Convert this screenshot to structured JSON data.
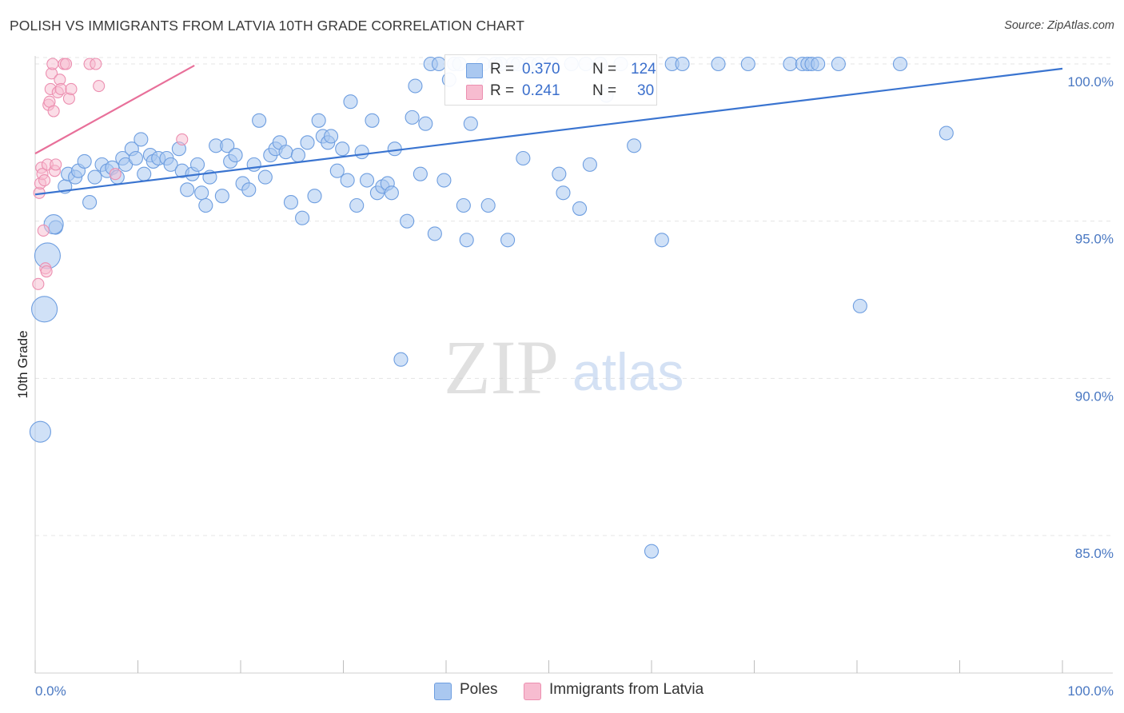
{
  "header": {
    "title": "POLISH VS IMMIGRANTS FROM LATVIA 10TH GRADE CORRELATION CHART",
    "source": "Source: ZipAtlas.com"
  },
  "watermark": {
    "zip": "ZIP",
    "atlas": "atlas"
  },
  "colors": {
    "poles_fill": "#aac8f0",
    "poles_stroke": "#6e9ee0",
    "poles_line": "#3a74d0",
    "latvia_fill": "#f7bcd0",
    "latvia_stroke": "#ec8fb0",
    "latvia_line": "#e8709a",
    "tick_text": "#4a78c2",
    "grid": "#e4e4e4"
  },
  "legend_top": {
    "rows": [
      {
        "r_label": "R =",
        "r_value": "0.370",
        "n_label": "N =",
        "n_value": "124"
      },
      {
        "r_label": "R =",
        "r_value": "0.241",
        "n_label": "N =",
        "n_value": "30"
      }
    ]
  },
  "legend_bottom": {
    "items": [
      "Poles",
      "Immigrants from Latvia"
    ]
  },
  "chart_data": {
    "type": "scatter",
    "title": "POLISH VS IMMIGRANTS FROM LATVIA 10TH GRADE CORRELATION CHART",
    "xlabel": "",
    "ylabel": "10th Grade",
    "xlim": [
      0,
      105
    ],
    "ylim": [
      80.5,
      100.6
    ],
    "x_tick_labels": [
      "0.0%",
      "100.0%"
    ],
    "y_ticks": [
      {
        "value": 85.0,
        "label": "85.0%"
      },
      {
        "value": 90.0,
        "label": "90.0%"
      },
      {
        "value": 95.0,
        "label": "95.0%"
      },
      {
        "value": 100.0,
        "label": "100.0%"
      }
    ],
    "grid": "horizontal dashed",
    "legend": "bottom-center",
    "series": [
      {
        "name": "Poles",
        "r": 0.37,
        "n": 124,
        "trend": {
          "x": [
            0.0,
            100.0
          ],
          "y": [
            95.85,
            99.85
          ]
        },
        "points": [
          [
            0.5,
            88.3
          ],
          [
            0.9,
            92.2
          ],
          [
            1.2,
            93.9
          ],
          [
            2.0,
            94.8
          ],
          [
            1.8,
            94.9
          ],
          [
            2.9,
            96.1
          ],
          [
            3.2,
            96.5
          ],
          [
            3.9,
            96.4
          ],
          [
            4.2,
            96.6
          ],
          [
            4.8,
            96.9
          ],
          [
            5.3,
            95.6
          ],
          [
            5.8,
            96.4
          ],
          [
            6.5,
            96.8
          ],
          [
            7.0,
            96.6
          ],
          [
            7.5,
            96.7
          ],
          [
            8.0,
            96.4
          ],
          [
            8.5,
            97.0
          ],
          [
            8.8,
            96.8
          ],
          [
            9.4,
            97.3
          ],
          [
            9.8,
            97.0
          ],
          [
            10.3,
            97.6
          ],
          [
            10.6,
            96.5
          ],
          [
            11.2,
            97.1
          ],
          [
            11.5,
            96.9
          ],
          [
            12.0,
            97.0
          ],
          [
            12.8,
            97.0
          ],
          [
            13.2,
            96.8
          ],
          [
            14.0,
            97.3
          ],
          [
            14.3,
            96.6
          ],
          [
            14.8,
            96.0
          ],
          [
            15.3,
            96.5
          ],
          [
            15.8,
            96.8
          ],
          [
            16.2,
            95.9
          ],
          [
            16.6,
            95.5
          ],
          [
            17.0,
            96.4
          ],
          [
            17.6,
            97.4
          ],
          [
            18.2,
            95.8
          ],
          [
            18.7,
            97.4
          ],
          [
            19.0,
            96.9
          ],
          [
            19.5,
            97.1
          ],
          [
            20.2,
            96.2
          ],
          [
            20.8,
            96.0
          ],
          [
            21.3,
            96.8
          ],
          [
            21.8,
            98.2
          ],
          [
            22.4,
            96.4
          ],
          [
            22.9,
            97.1
          ],
          [
            23.4,
            97.3
          ],
          [
            23.8,
            97.5
          ],
          [
            24.4,
            97.2
          ],
          [
            24.9,
            95.6
          ],
          [
            25.6,
            97.1
          ],
          [
            26.0,
            95.1
          ],
          [
            26.5,
            97.5
          ],
          [
            27.2,
            95.8
          ],
          [
            27.6,
            98.2
          ],
          [
            28.0,
            97.7
          ],
          [
            28.5,
            97.5
          ],
          [
            28.8,
            97.7
          ],
          [
            29.4,
            96.6
          ],
          [
            29.9,
            97.3
          ],
          [
            30.4,
            96.3
          ],
          [
            30.7,
            98.8
          ],
          [
            31.3,
            95.5
          ],
          [
            31.8,
            97.2
          ],
          [
            32.3,
            96.3
          ],
          [
            32.8,
            98.2
          ],
          [
            33.3,
            95.9
          ],
          [
            33.8,
            96.1
          ],
          [
            34.3,
            96.2
          ],
          [
            34.7,
            95.9
          ],
          [
            35.0,
            97.3
          ],
          [
            35.6,
            90.6
          ],
          [
            36.2,
            95.0
          ],
          [
            36.7,
            98.3
          ],
          [
            37.0,
            99.3
          ],
          [
            37.5,
            96.5
          ],
          [
            38.0,
            98.1
          ],
          [
            38.5,
            100.0
          ],
          [
            38.9,
            94.6
          ],
          [
            39.3,
            100.0
          ],
          [
            39.8,
            96.3
          ],
          [
            40.3,
            99.5
          ],
          [
            40.8,
            100.0
          ],
          [
            41.3,
            100.0
          ],
          [
            41.7,
            95.5
          ],
          [
            42.0,
            94.4
          ],
          [
            42.4,
            98.1
          ],
          [
            43.0,
            99.5
          ],
          [
            43.6,
            100.0
          ],
          [
            44.1,
            95.5
          ],
          [
            44.8,
            100.0
          ],
          [
            45.3,
            100.0
          ],
          [
            46.0,
            94.4
          ],
          [
            46.5,
            100.0
          ],
          [
            47.0,
            100.0
          ],
          [
            47.5,
            97.0
          ],
          [
            48.2,
            100.0
          ],
          [
            49.0,
            100.0
          ],
          [
            50.3,
            100.0
          ],
          [
            51.0,
            96.5
          ],
          [
            51.4,
            95.9
          ],
          [
            52.2,
            100.0
          ],
          [
            53.0,
            95.4
          ],
          [
            53.6,
            100.0
          ],
          [
            54.0,
            96.8
          ],
          [
            55.0,
            100.0
          ],
          [
            55.6,
            99.0
          ],
          [
            57.0,
            100.0
          ],
          [
            58.3,
            97.4
          ],
          [
            60.0,
            84.5
          ],
          [
            61.0,
            94.4
          ],
          [
            62.0,
            100.0
          ],
          [
            63.0,
            100.0
          ],
          [
            66.5,
            100.0
          ],
          [
            69.4,
            100.0
          ],
          [
            73.5,
            100.0
          ],
          [
            74.7,
            100.0
          ],
          [
            75.2,
            100.0
          ],
          [
            75.6,
            100.0
          ],
          [
            76.2,
            100.0
          ],
          [
            78.2,
            100.0
          ],
          [
            80.3,
            92.3
          ],
          [
            84.2,
            100.0
          ],
          [
            88.7,
            97.8
          ]
        ]
      },
      {
        "name": "Immigrants from Latvia",
        "r": 0.241,
        "n": 30,
        "trend": {
          "x": [
            0.0,
            15.5
          ],
          "y": [
            97.15,
            99.95
          ]
        },
        "points": [
          [
            0.3,
            93.0
          ],
          [
            0.4,
            95.9
          ],
          [
            0.5,
            96.2
          ],
          [
            0.6,
            96.7
          ],
          [
            0.7,
            96.5
          ],
          [
            0.8,
            94.7
          ],
          [
            0.9,
            96.3
          ],
          [
            1.0,
            93.5
          ],
          [
            1.1,
            93.4
          ],
          [
            1.2,
            96.8
          ],
          [
            1.3,
            98.7
          ],
          [
            1.4,
            98.8
          ],
          [
            1.5,
            99.2
          ],
          [
            1.6,
            99.7
          ],
          [
            1.7,
            100.0
          ],
          [
            1.8,
            98.5
          ],
          [
            1.9,
            96.6
          ],
          [
            2.0,
            96.8
          ],
          [
            2.2,
            99.1
          ],
          [
            2.4,
            99.5
          ],
          [
            2.5,
            99.2
          ],
          [
            2.8,
            100.0
          ],
          [
            3.0,
            100.0
          ],
          [
            3.3,
            98.9
          ],
          [
            3.5,
            99.2
          ],
          [
            5.3,
            100.0
          ],
          [
            5.9,
            100.0
          ],
          [
            6.2,
            99.3
          ],
          [
            7.8,
            96.5
          ],
          [
            14.3,
            97.6
          ]
        ]
      }
    ]
  }
}
